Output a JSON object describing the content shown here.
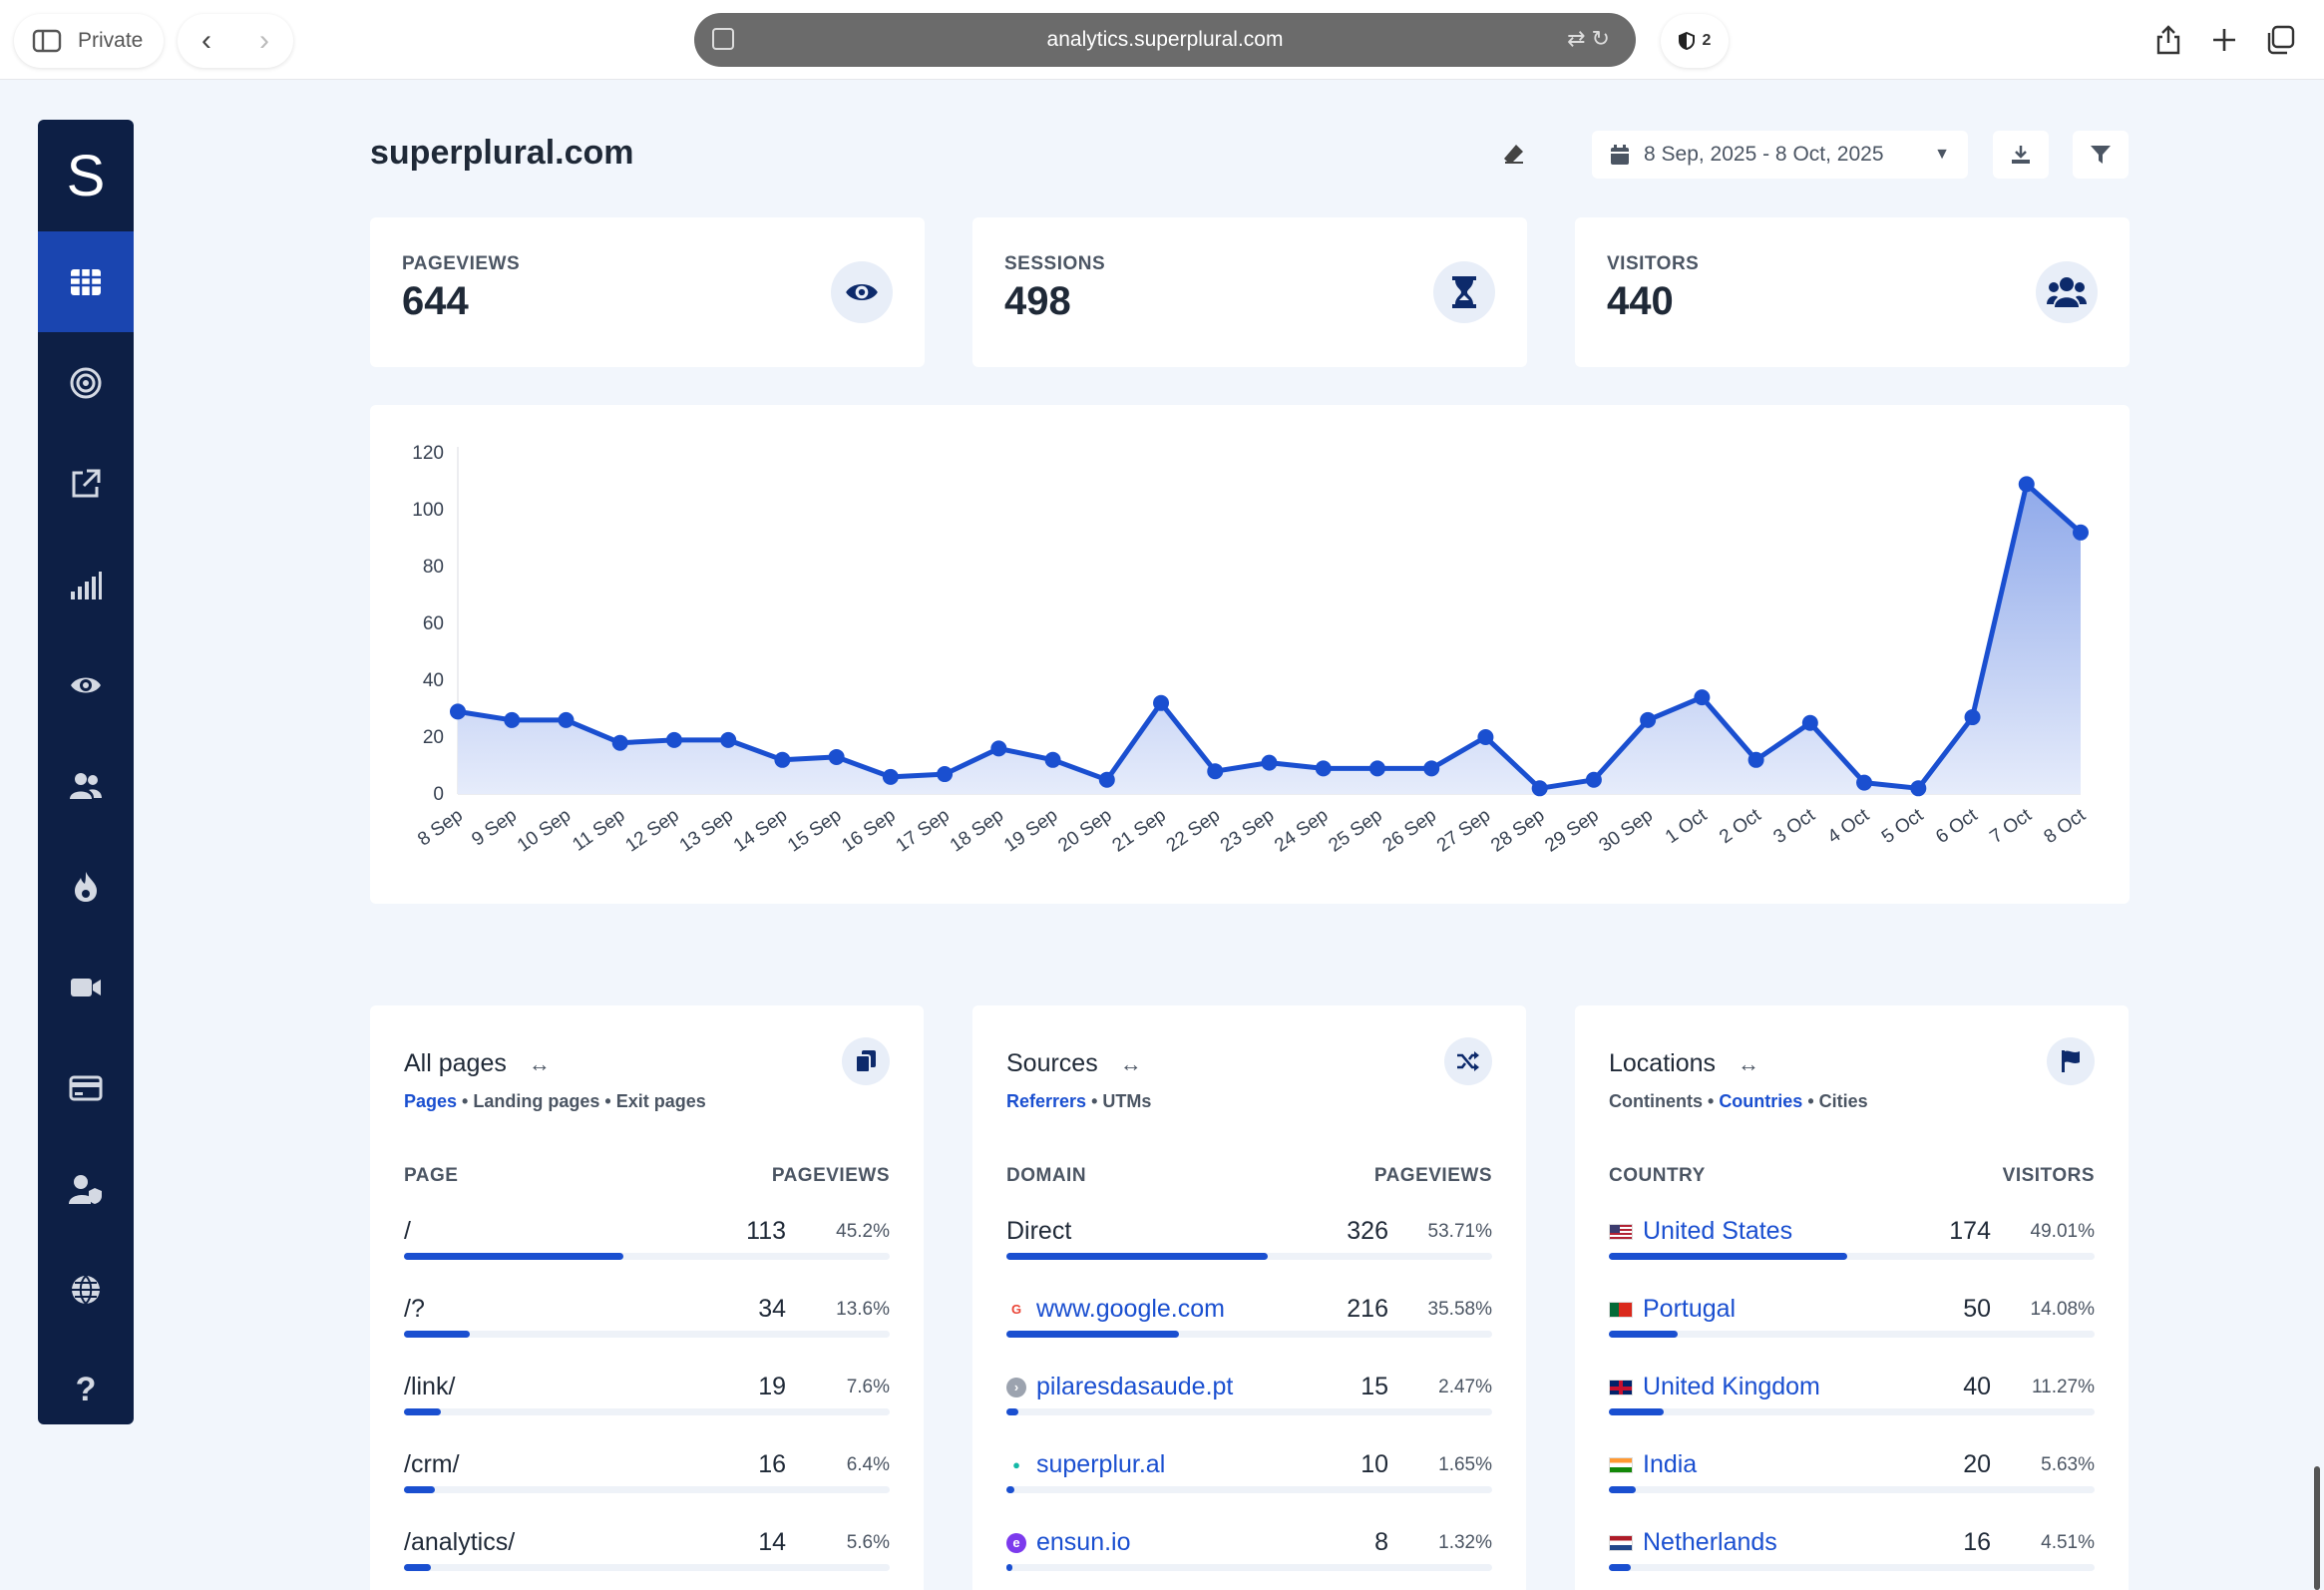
{
  "browser": {
    "private_label": "Private",
    "url": "analytics.superplural.com",
    "shield_count": "2"
  },
  "sidebar": {
    "logo": "S",
    "items": [
      "dashboard-grid-icon",
      "target-icon",
      "external-link-icon",
      "signal-bars-icon",
      "eye-icon",
      "users-icon",
      "fire-icon",
      "video-icon",
      "card-icon",
      "user-shield-icon",
      "globe-icon",
      "help-icon"
    ]
  },
  "header": {
    "site": "superplural.com",
    "date_range": "8 Sep, 2025 - 8 Oct, 2025"
  },
  "stats": [
    {
      "label": "PAGEVIEWS",
      "value": "644",
      "icon": "eye-icon"
    },
    {
      "label": "SESSIONS",
      "value": "498",
      "icon": "hourglass-icon"
    },
    {
      "label": "VISITORS",
      "value": "440",
      "icon": "users-icon"
    }
  ],
  "chart_data": {
    "type": "area",
    "x": [
      "8 Sep",
      "9 Sep",
      "10 Sep",
      "11 Sep",
      "12 Sep",
      "13 Sep",
      "14 Sep",
      "15 Sep",
      "16 Sep",
      "17 Sep",
      "18 Sep",
      "19 Sep",
      "20 Sep",
      "21 Sep",
      "22 Sep",
      "23 Sep",
      "24 Sep",
      "25 Sep",
      "26 Sep",
      "27 Sep",
      "28 Sep",
      "29 Sep",
      "30 Sep",
      "1 Oct",
      "2 Oct",
      "3 Oct",
      "4 Oct",
      "5 Oct",
      "6 Oct",
      "7 Oct",
      "8 Oct"
    ],
    "values": [
      29,
      26,
      26,
      18,
      19,
      19,
      12,
      13,
      6,
      7,
      16,
      12,
      5,
      32,
      8,
      11,
      9,
      9,
      9,
      20,
      2,
      5,
      26,
      34,
      12,
      25,
      4,
      2,
      27,
      109,
      92
    ],
    "yticks": [
      0,
      20,
      40,
      60,
      80,
      100,
      120
    ],
    "ylim": [
      0,
      120
    ],
    "grid": false,
    "colors": {
      "line": "#1a4fd0",
      "area_top": "#8fa9ea",
      "area_bottom": "#e6ecfb"
    }
  },
  "panels": [
    {
      "title": "All pages",
      "icon": "copy-icon",
      "tabs": [
        {
          "label": "Pages",
          "active": true
        },
        {
          "label": "Landing pages",
          "active": false
        },
        {
          "label": "Exit pages",
          "active": false
        }
      ],
      "col1": "PAGE",
      "col2": "PAGEVIEWS",
      "rows": [
        {
          "name": "/",
          "value": "113",
          "pct": "45.2%",
          "share": 0.452,
          "link": false
        },
        {
          "name": "/?",
          "value": "34",
          "pct": "13.6%",
          "share": 0.136,
          "link": false
        },
        {
          "name": "/link/",
          "value": "19",
          "pct": "7.6%",
          "share": 0.076,
          "link": false
        },
        {
          "name": "/crm/",
          "value": "16",
          "pct": "6.4%",
          "share": 0.064,
          "link": false
        },
        {
          "name": "/analytics/",
          "value": "14",
          "pct": "5.6%",
          "share": 0.056,
          "link": false
        }
      ]
    },
    {
      "title": "Sources",
      "icon": "shuffle-icon",
      "tabs": [
        {
          "label": "Referrers",
          "active": true
        },
        {
          "label": "UTMs",
          "active": false
        }
      ],
      "col1": "DOMAIN",
      "col2": "PAGEVIEWS",
      "rows": [
        {
          "name": "Direct",
          "value": "326",
          "pct": "53.71%",
          "share": 0.5371,
          "link": false
        },
        {
          "name": "www.google.com",
          "value": "216",
          "pct": "35.58%",
          "share": 0.3558,
          "link": true,
          "fav": "google-favicon-icon"
        },
        {
          "name": "pilaresdasaude.pt",
          "value": "15",
          "pct": "2.47%",
          "share": 0.0247,
          "link": true,
          "fav": "pilares-favicon-icon"
        },
        {
          "name": "superplur.al",
          "value": "10",
          "pct": "1.65%",
          "share": 0.0165,
          "link": true,
          "fav": "superplural-favicon-icon"
        },
        {
          "name": "ensun.io",
          "value": "8",
          "pct": "1.32%",
          "share": 0.0132,
          "link": true,
          "fav": "ensun-favicon-icon"
        }
      ]
    },
    {
      "title": "Locations",
      "icon": "flag-icon",
      "tabs": [
        {
          "label": "Continents",
          "active": false
        },
        {
          "label": "Countries",
          "active": true
        },
        {
          "label": "Cities",
          "active": false
        }
      ],
      "col1": "COUNTRY",
      "col2": "VISITORS",
      "rows": [
        {
          "name": "United States",
          "value": "174",
          "pct": "49.01%",
          "share": 0.4901,
          "link": true,
          "fav": "us-flag-icon"
        },
        {
          "name": "Portugal",
          "value": "50",
          "pct": "14.08%",
          "share": 0.1408,
          "link": true,
          "fav": "pt-flag-icon"
        },
        {
          "name": "United Kingdom",
          "value": "40",
          "pct": "11.27%",
          "share": 0.1127,
          "link": true,
          "fav": "uk-flag-icon"
        },
        {
          "name": "India",
          "value": "20",
          "pct": "5.63%",
          "share": 0.0563,
          "link": true,
          "fav": "in-flag-icon"
        },
        {
          "name": "Netherlands",
          "value": "16",
          "pct": "4.51%",
          "share": 0.0451,
          "link": true,
          "fav": "nl-flag-icon"
        }
      ]
    }
  ]
}
